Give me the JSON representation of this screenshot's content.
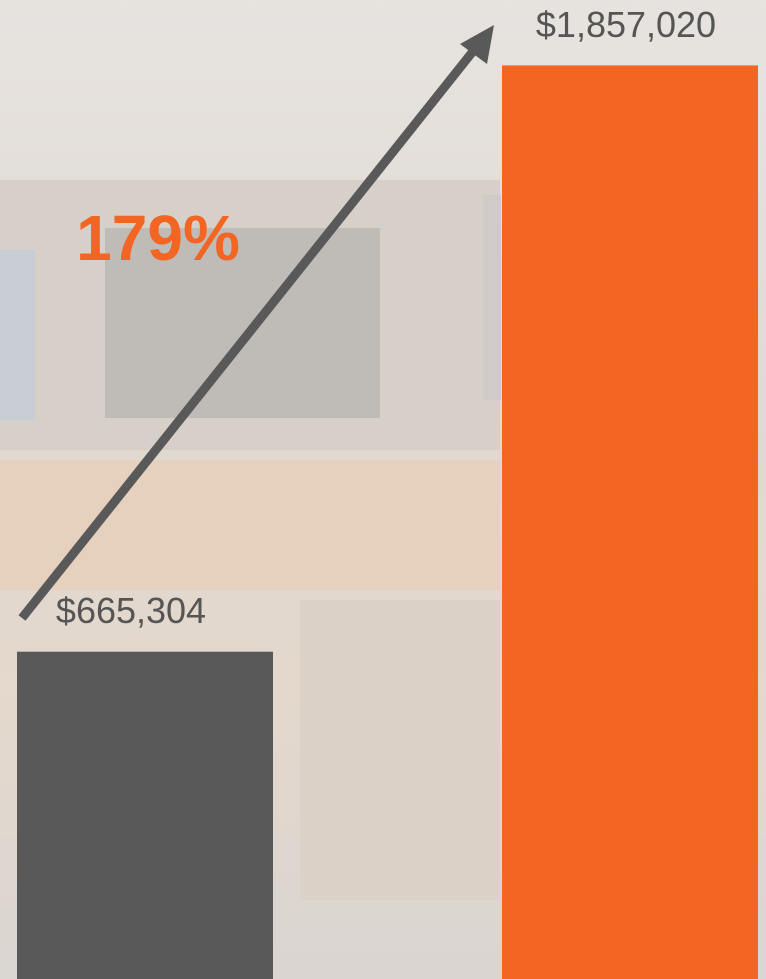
{
  "chart_data": {
    "type": "bar",
    "annotation": "179%",
    "categories": [
      null,
      null
    ],
    "values": [
      665304,
      1857020
    ],
    "value_labels": [
      "$665,304",
      "$1,857,020"
    ],
    "colors": [
      "#595959",
      "#f26522"
    ],
    "annotation_color": "#f26522",
    "ylim": [
      0,
      1990000
    ]
  }
}
